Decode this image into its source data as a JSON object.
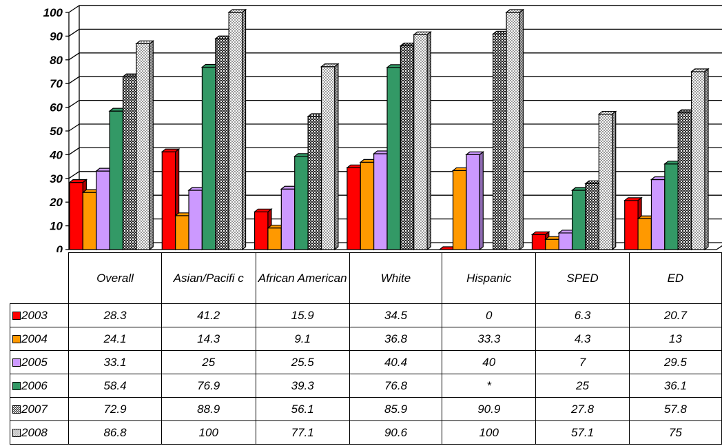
{
  "chart_data": {
    "type": "bar",
    "categories": [
      "Overall",
      "Asian/Pacific",
      "African American",
      "White",
      "Hispanic",
      "SPED",
      "ED"
    ],
    "category_display": [
      "Overall",
      "Asian/Pacifi c",
      "African American",
      "White",
      "Hispanic",
      "SPED",
      "ED"
    ],
    "ylim": [
      0,
      100
    ],
    "yticks": [
      "0",
      "10",
      "20",
      "30",
      "40",
      "50",
      "60",
      "70",
      "80",
      "90",
      "100"
    ],
    "grid": true,
    "legend": "data-table",
    "series": [
      {
        "name": "2003",
        "color": "#ff0000",
        "pattern": "solid",
        "values": [
          28.3,
          41.2,
          15.9,
          34.5,
          0,
          6.3,
          20.7
        ],
        "labels": [
          "28.3",
          "41.2",
          "15.9",
          "34.5",
          "0",
          "6.3",
          "20.7"
        ]
      },
      {
        "name": "2004",
        "color": "#ff9900",
        "pattern": "solid",
        "values": [
          24.1,
          14.3,
          9.1,
          36.8,
          33.3,
          4.3,
          13
        ],
        "labels": [
          "24.1",
          "14.3",
          "9.1",
          "36.8",
          "33.3",
          "4.3",
          "13"
        ]
      },
      {
        "name": "2005",
        "color": "#cc99ff",
        "pattern": "solid",
        "values": [
          33.1,
          25,
          25.5,
          40.4,
          40,
          7,
          29.5
        ],
        "labels": [
          "33.1",
          "25",
          "25.5",
          "40.4",
          "40",
          "7",
          "29.5"
        ]
      },
      {
        "name": "2006",
        "color": "#339966",
        "pattern": "solid",
        "values": [
          58.4,
          76.9,
          39.3,
          76.8,
          null,
          25,
          36.1
        ],
        "labels": [
          "58.4",
          "76.9",
          "39.3",
          "76.8",
          "*",
          "25",
          "36.1"
        ]
      },
      {
        "name": "2007",
        "color": "#606060",
        "pattern": "dark-checker",
        "values": [
          72.9,
          88.9,
          56.1,
          85.9,
          90.9,
          27.8,
          57.8
        ],
        "labels": [
          "72.9",
          "88.9",
          "56.1",
          "85.9",
          "90.9",
          "27.8",
          "57.8"
        ]
      },
      {
        "name": "2008",
        "color": "#c8c8c8",
        "pattern": "light-checker",
        "values": [
          86.8,
          100,
          77.1,
          90.6,
          100,
          57.1,
          75
        ],
        "labels": [
          "86.8",
          "100",
          "77.1",
          "90.6",
          "100",
          "57.1",
          "75"
        ]
      }
    ]
  }
}
